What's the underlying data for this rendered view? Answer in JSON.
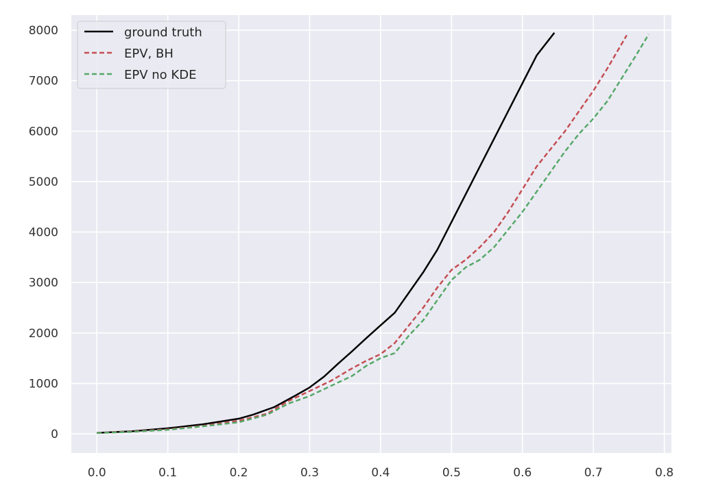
{
  "chart_data": {
    "type": "line",
    "title": "",
    "xlabel": "",
    "ylabel": "",
    "xlim": [
      -0.036,
      0.81
    ],
    "ylim": [
      -380,
      8300
    ],
    "grid": true,
    "legend_position": "top-left",
    "x_ticks": [
      0.0,
      0.1,
      0.2,
      0.3,
      0.4,
      0.5,
      0.6,
      0.7,
      0.8
    ],
    "x_tick_labels": [
      "0.0",
      "0.1",
      "0.2",
      "0.3",
      "0.4",
      "0.5",
      "0.6",
      "0.7",
      "0.8"
    ],
    "y_ticks": [
      0,
      1000,
      2000,
      3000,
      4000,
      5000,
      6000,
      7000,
      8000
    ],
    "y_tick_labels": [
      "0",
      "1000",
      "2000",
      "3000",
      "4000",
      "5000",
      "6000",
      "7000",
      "8000"
    ],
    "series": [
      {
        "name": "ground truth",
        "color": "#000000",
        "dashed": false,
        "x": [
          0.0,
          0.05,
          0.1,
          0.15,
          0.2,
          0.22,
          0.25,
          0.28,
          0.3,
          0.32,
          0.34,
          0.36,
          0.38,
          0.4,
          0.42,
          0.44,
          0.46,
          0.48,
          0.5,
          0.52,
          0.54,
          0.56,
          0.58,
          0.6,
          0.62,
          0.645
        ],
        "y": [
          20,
          50,
          110,
          190,
          300,
          380,
          530,
          760,
          920,
          1130,
          1390,
          1640,
          1900,
          2150,
          2400,
          2800,
          3200,
          3650,
          4200,
          4750,
          5300,
          5850,
          6400,
          6950,
          7500,
          7950
        ]
      },
      {
        "name": "EPV, BH",
        "color": "#c44e52",
        "dashed": true,
        "x": [
          0.0,
          0.05,
          0.1,
          0.15,
          0.2,
          0.24,
          0.27,
          0.3,
          0.33,
          0.36,
          0.38,
          0.4,
          0.42,
          0.44,
          0.46,
          0.48,
          0.5,
          0.52,
          0.54,
          0.56,
          0.58,
          0.6,
          0.62,
          0.64,
          0.66,
          0.68,
          0.7,
          0.72,
          0.747
        ],
        "y": [
          20,
          45,
          90,
          160,
          260,
          400,
          650,
          850,
          1050,
          1300,
          1450,
          1580,
          1800,
          2150,
          2500,
          2900,
          3250,
          3450,
          3700,
          4000,
          4400,
          4850,
          5300,
          5650,
          6000,
          6400,
          6800,
          7250,
          7900
        ]
      },
      {
        "name": "EPV no KDE",
        "color": "#55a868",
        "dashed": true,
        "x": [
          0.0,
          0.05,
          0.1,
          0.15,
          0.2,
          0.24,
          0.27,
          0.3,
          0.33,
          0.36,
          0.38,
          0.4,
          0.42,
          0.44,
          0.46,
          0.48,
          0.5,
          0.52,
          0.54,
          0.56,
          0.58,
          0.6,
          0.62,
          0.64,
          0.66,
          0.68,
          0.7,
          0.72,
          0.74,
          0.76,
          0.778
        ],
        "y": [
          15,
          40,
          80,
          150,
          230,
          380,
          600,
          750,
          950,
          1150,
          1350,
          1500,
          1600,
          1950,
          2250,
          2650,
          3050,
          3300,
          3450,
          3700,
          4050,
          4400,
          4800,
          5200,
          5600,
          5950,
          6250,
          6600,
          7050,
          7500,
          7920
        ]
      }
    ]
  }
}
